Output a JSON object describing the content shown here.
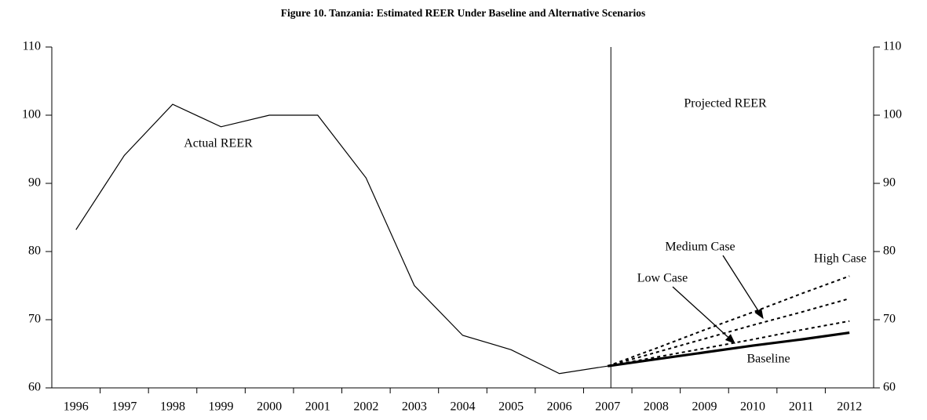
{
  "chart_data": {
    "type": "line",
    "title": "Figure 10. Tanzania: Estimated REER Under Baseline and Alternative Scenarios",
    "categories": [
      "1996",
      "1997",
      "1998",
      "1999",
      "2000",
      "2001",
      "2002",
      "2003",
      "2004",
      "2005",
      "2006",
      "2007",
      "2008",
      "2009",
      "2010",
      "2011",
      "2012"
    ],
    "series": [
      {
        "name": "Actual REER",
        "color": "#000000",
        "style": "solid",
        "values": [
          83.2,
          94.1,
          101.6,
          98.3,
          100,
          100,
          90.8,
          75,
          67.7,
          65.6,
          62.1,
          63.2,
          null,
          null,
          null,
          null,
          null
        ]
      },
      {
        "name": "Baseline",
        "color": "#000000",
        "style": "thick",
        "values": [
          null,
          null,
          null,
          null,
          null,
          null,
          null,
          null,
          null,
          null,
          null,
          63.2,
          64.2,
          65.2,
          66.2,
          67.1,
          68.1
        ]
      },
      {
        "name": "Low Case",
        "color": "#000000",
        "style": "dashed",
        "values": [
          null,
          null,
          null,
          null,
          null,
          null,
          null,
          null,
          null,
          null,
          null,
          63.2,
          64.5,
          65.8,
          67.1,
          68.5,
          69.8
        ]
      },
      {
        "name": "Medium Case",
        "color": "#000000",
        "style": "dashed",
        "values": [
          null,
          null,
          null,
          null,
          null,
          null,
          null,
          null,
          null,
          null,
          null,
          63.2,
          65.2,
          67.2,
          69.2,
          71.1,
          73.1
        ]
      },
      {
        "name": "High Case",
        "color": "#000000",
        "style": "dashed",
        "values": [
          null,
          null,
          null,
          null,
          null,
          null,
          null,
          null,
          null,
          null,
          null,
          63.2,
          65.8,
          68.5,
          71.1,
          73.8,
          76.4
        ]
      }
    ],
    "annotations": [
      "Projected REER"
    ],
    "ylim": [
      60,
      110
    ],
    "yticks": [
      60,
      70,
      80,
      90,
      100,
      110
    ],
    "y2lim": [
      60,
      110
    ],
    "y2ticks": [
      60,
      70,
      80,
      90,
      100,
      110
    ]
  }
}
